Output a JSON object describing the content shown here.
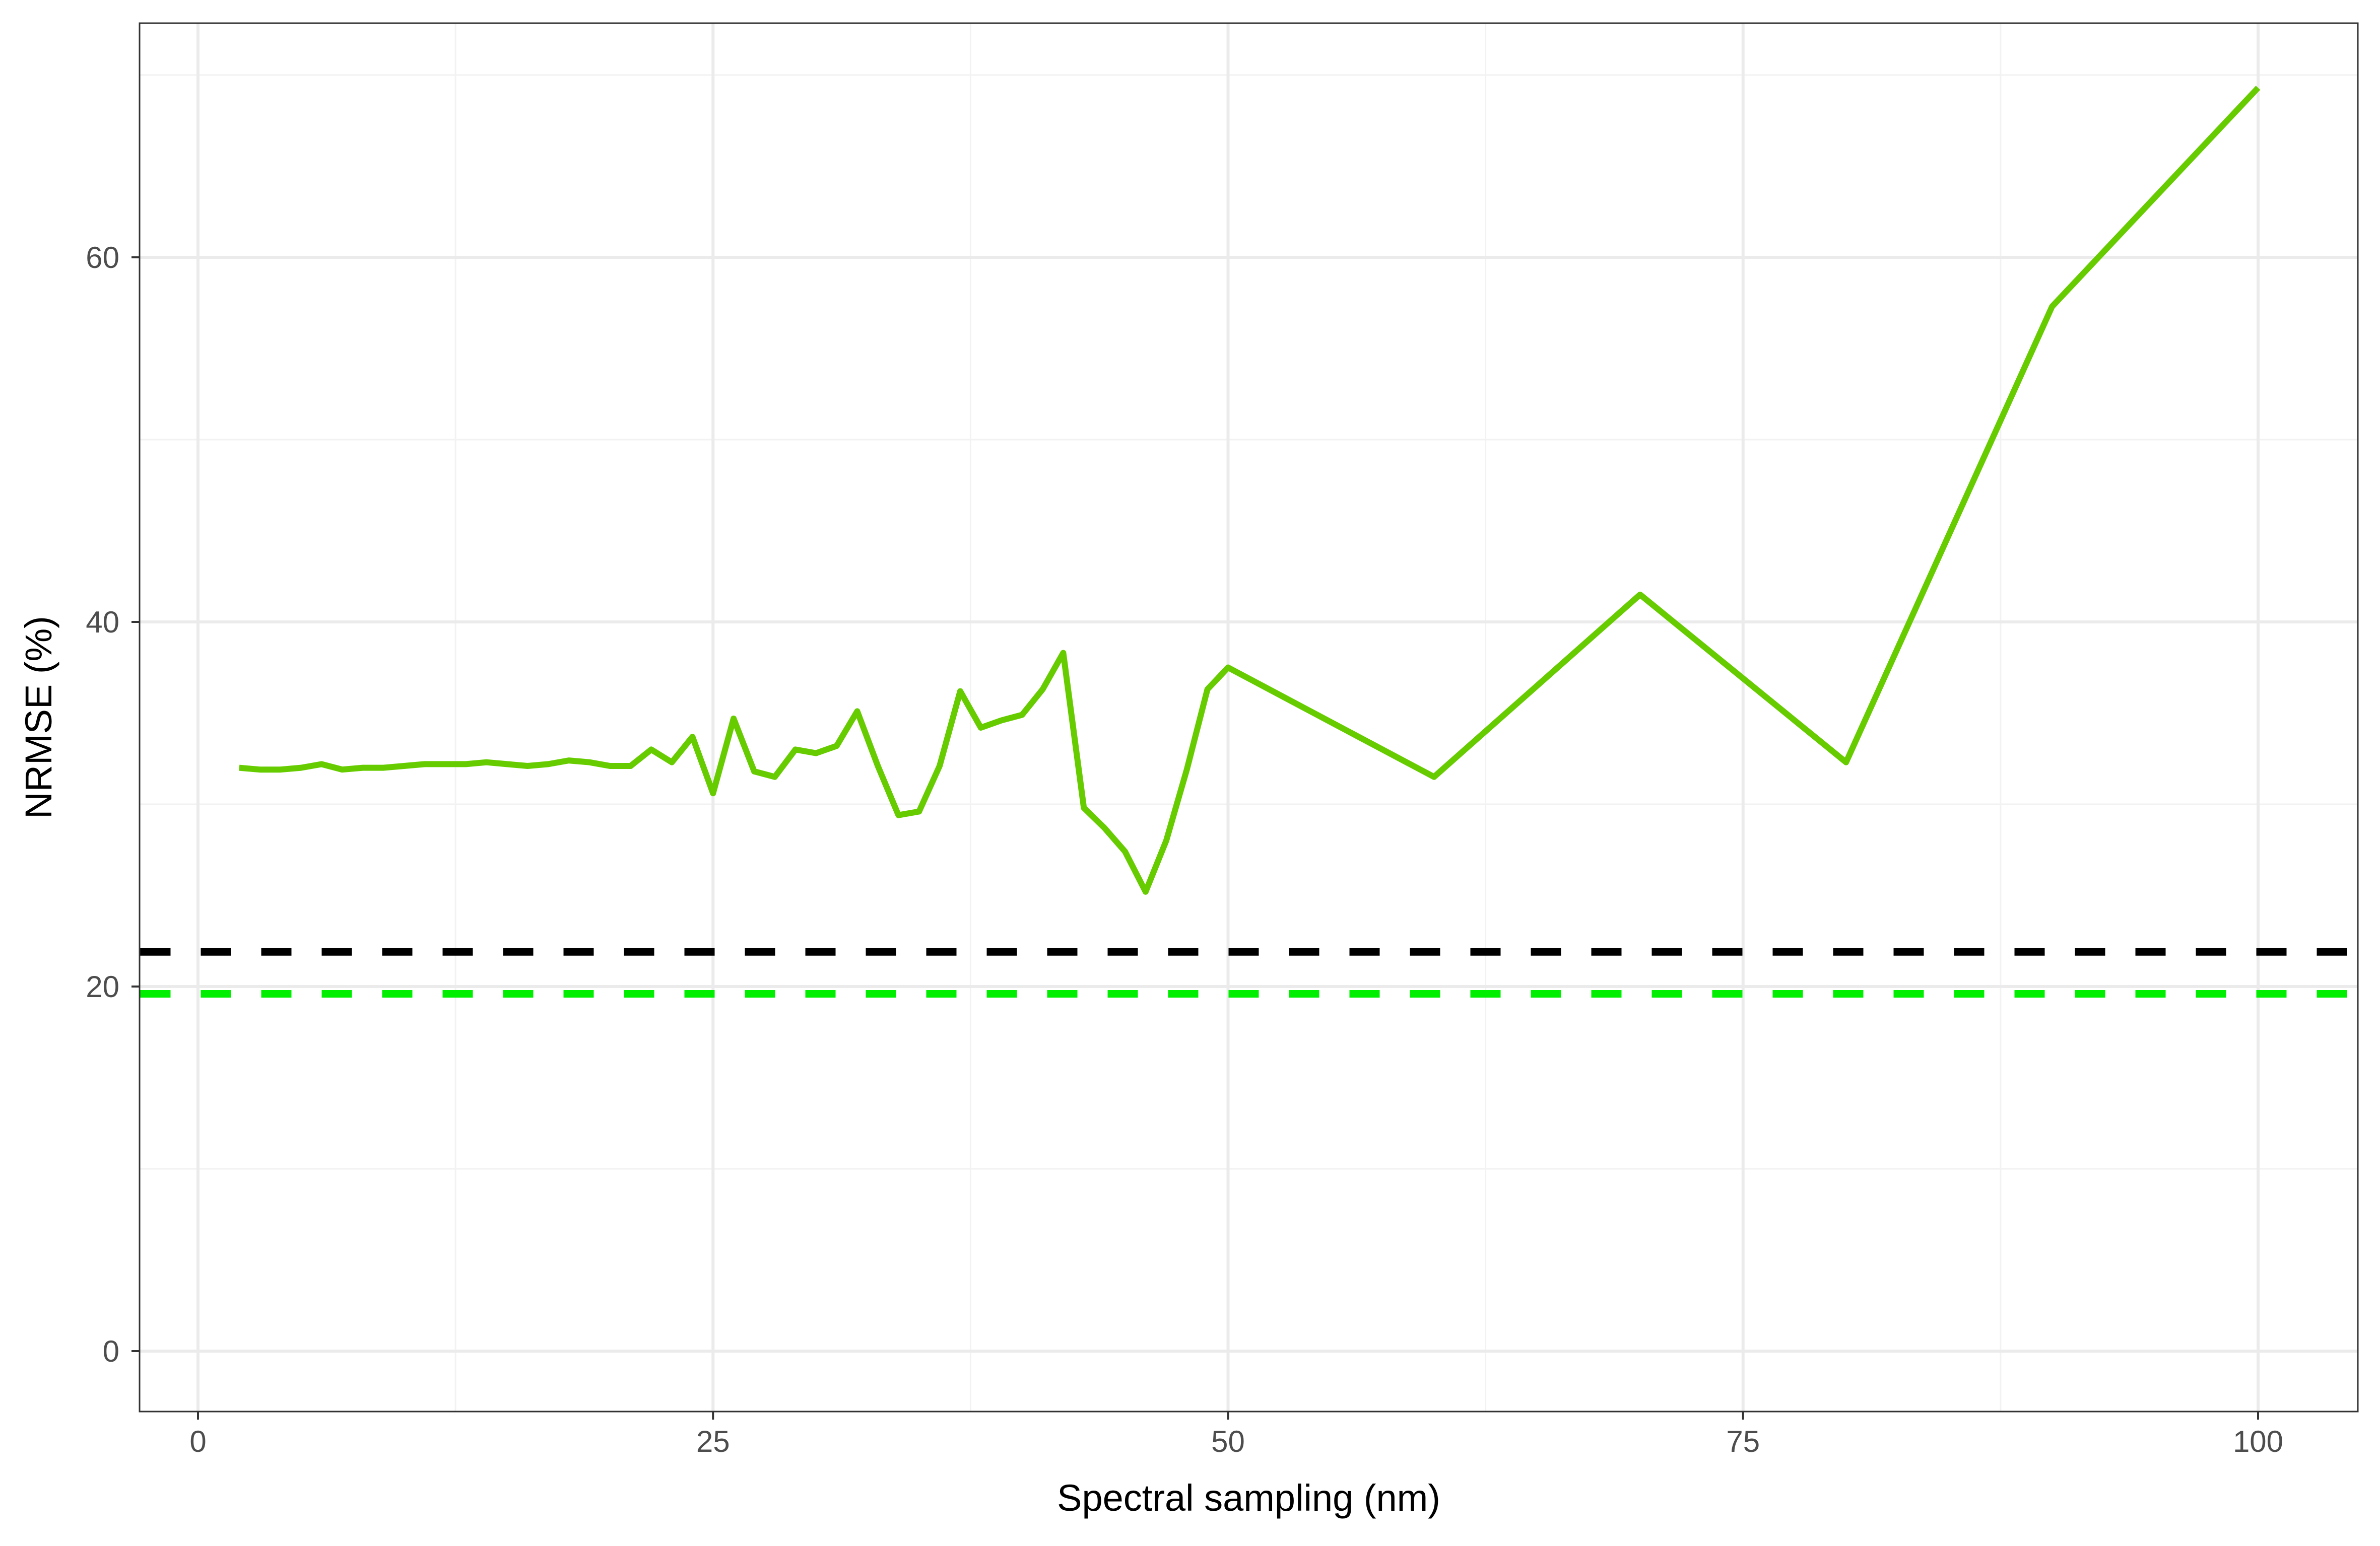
{
  "chart_data": {
    "type": "line",
    "title": "",
    "xlabel": "Spectral sampling (nm)",
    "ylabel": "NRMSE (%)",
    "xlim": [
      -2.8,
      105
    ],
    "ylim": [
      -3.4,
      72.8
    ],
    "grid": true,
    "x_ticks": [
      0,
      25,
      50,
      75,
      100
    ],
    "x_tick_labels": [
      "0",
      "25",
      "50",
      "75",
      "100"
    ],
    "y_ticks": [
      0,
      20,
      40,
      60
    ],
    "y_tick_labels": [
      "0",
      "20",
      "40",
      "60"
    ],
    "series": [
      {
        "color": "#66cc00",
        "style": "solid",
        "x": [
          2,
          3,
          4,
          5,
          6,
          7,
          8,
          9,
          10,
          11,
          12,
          13,
          14,
          15,
          16,
          17,
          18,
          19,
          20,
          21,
          22,
          23,
          24,
          25,
          26,
          27,
          28,
          29,
          30,
          31,
          32,
          33,
          34,
          35,
          36,
          37,
          38,
          39,
          40,
          41,
          42,
          43,
          44,
          45,
          46,
          47,
          48,
          49,
          50,
          60,
          70,
          80,
          90,
          100
        ],
        "y": [
          32.0,
          31.9,
          31.9,
          32.0,
          32.2,
          31.9,
          32.0,
          32.0,
          32.1,
          32.2,
          32.2,
          32.2,
          32.3,
          32.2,
          32.1,
          32.2,
          32.4,
          32.3,
          32.1,
          32.1,
          33.0,
          32.3,
          33.7,
          30.6,
          34.7,
          31.8,
          31.5,
          33.0,
          32.8,
          33.2,
          35.1,
          32.1,
          29.4,
          29.6,
          32.1,
          36.2,
          34.2,
          34.6,
          34.9,
          36.3,
          38.3,
          29.8,
          28.7,
          27.4,
          25.2,
          28.0,
          31.9,
          36.3,
          37.5,
          31.5,
          41.5,
          32.3,
          57.3,
          69.3
        ]
      },
      {
        "color": "#000000",
        "style": "dashed",
        "x": [
          -2.8,
          105
        ],
        "y": [
          21.9,
          21.9
        ]
      },
      {
        "color": "#00ee00",
        "style": "dashed",
        "x": [
          -2.8,
          105
        ],
        "y": [
          19.6,
          19.6
        ]
      }
    ]
  }
}
